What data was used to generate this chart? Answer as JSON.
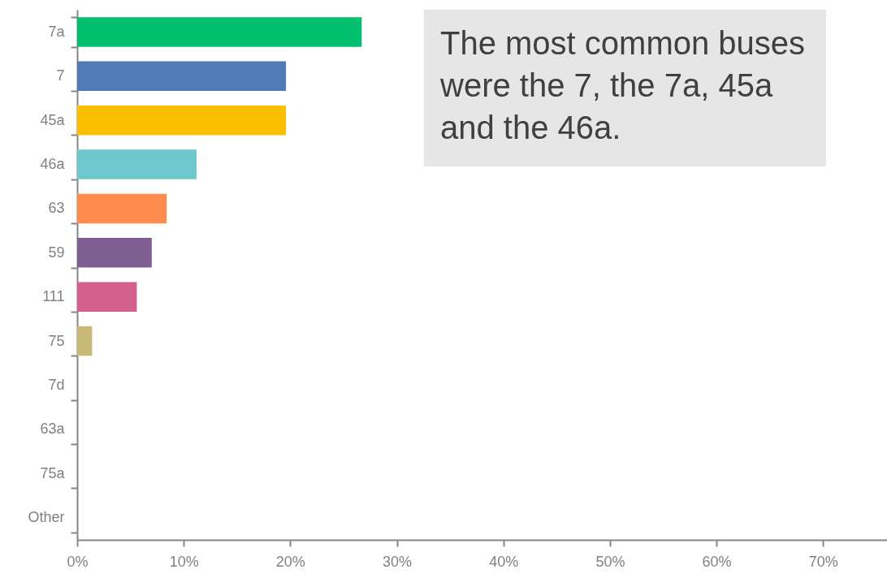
{
  "chart_data": {
    "type": "bar",
    "orientation": "horizontal",
    "categories": [
      "7a",
      "7",
      "45a",
      "46a",
      "63",
      "59",
      "111",
      "75",
      "7d",
      "63a",
      "75a",
      "Other"
    ],
    "values": [
      26.7,
      19.6,
      19.6,
      11.2,
      8.4,
      7.0,
      5.6,
      1.4,
      0,
      0,
      0,
      0
    ],
    "colors": [
      "#00bf6f",
      "#4f7bb5",
      "#f9bf00",
      "#6cc8cc",
      "#ff8b4f",
      "#7f5e91",
      "#d4608f",
      "#c8b979",
      "#c8b979",
      "#c8b979",
      "#c8b979",
      "#c8b979"
    ],
    "xlim": [
      0,
      76
    ],
    "xticks": [
      {
        "value": 0,
        "label": "0%"
      },
      {
        "value": 10,
        "label": "10%"
      },
      {
        "value": 20,
        "label": "20%"
      },
      {
        "value": 30,
        "label": "30%"
      },
      {
        "value": 40,
        "label": "40%"
      },
      {
        "value": 50,
        "label": "50%"
      },
      {
        "value": 60,
        "label": "60%"
      },
      {
        "value": 70,
        "label": "70%"
      }
    ],
    "grid": false,
    "annotations": [
      "The most common buses were the 7, the 7a, 45a and the 46a."
    ]
  }
}
